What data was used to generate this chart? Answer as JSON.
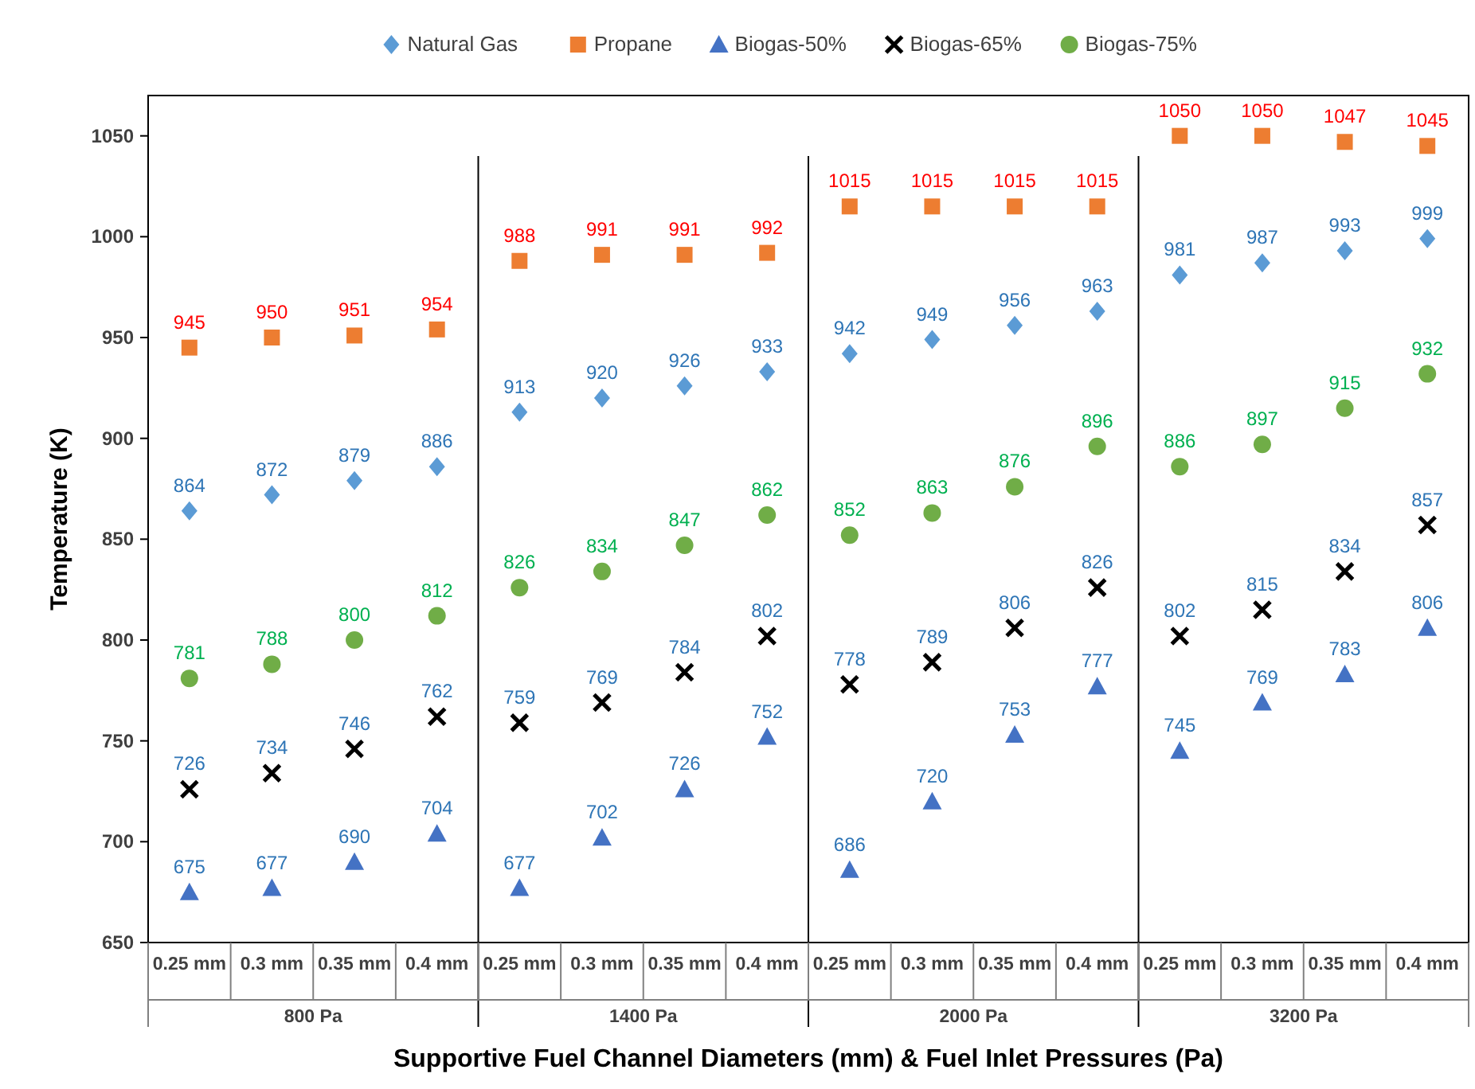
{
  "chart_data": {
    "type": "scatter",
    "xlabel": "Supportive Fuel Channel Diameters (mm) & Fuel Inlet Pressures (Pa)",
    "ylabel": "Temperature  (K)",
    "categories": [
      "0.25 mm",
      "0.3 mm",
      "0.35 mm",
      "0.4 mm",
      "0.25 mm",
      "0.3 mm",
      "0.35 mm",
      "0.4 mm",
      "0.25 mm",
      "0.3 mm",
      "0.35 mm",
      "0.4 mm",
      "0.25 mm",
      "0.3 mm",
      "0.35 mm",
      "0.4 mm"
    ],
    "annotations": [
      "800 Pa",
      "1400 Pa",
      "2000 Pa",
      "3200 Pa"
    ],
    "series": [
      {
        "name": "Natural Gas",
        "color": "#5b9bd5",
        "marker": "diamond",
        "values": [
          864,
          872,
          879,
          886,
          913,
          920,
          926,
          933,
          942,
          949,
          956,
          963,
          981,
          987,
          993,
          999
        ]
      },
      {
        "name": "Propane",
        "color": "#ed7d31",
        "marker": "square",
        "values": [
          945,
          950,
          951,
          954,
          988,
          991,
          991,
          992,
          1015,
          1015,
          1015,
          1015,
          1050,
          1050,
          1047,
          1045
        ]
      },
      {
        "name": "Biogas-50%",
        "color": "#4472c4",
        "marker": "triangle",
        "values": [
          675,
          677,
          690,
          704,
          677,
          702,
          726,
          752,
          686,
          720,
          753,
          777,
          745,
          769,
          783,
          806
        ]
      },
      {
        "name": "Biogas-65%",
        "color": "#000000",
        "marker": "cross",
        "values": [
          726,
          734,
          746,
          762,
          759,
          769,
          784,
          802,
          778,
          789,
          806,
          826,
          802,
          815,
          834,
          857
        ]
      },
      {
        "name": "Biogas-75%",
        "color": "#70ad47",
        "marker": "circle",
        "values": [
          781,
          788,
          800,
          812,
          826,
          834,
          847,
          862,
          852,
          863,
          876,
          896,
          886,
          897,
          915,
          932
        ]
      }
    ],
    "ylim": [
      650,
      1070
    ],
    "yticks": [
      650,
      700,
      750,
      800,
      850,
      900,
      950,
      1000,
      1050
    ],
    "grid": false,
    "legend": "top",
    "data_labels": true
  }
}
